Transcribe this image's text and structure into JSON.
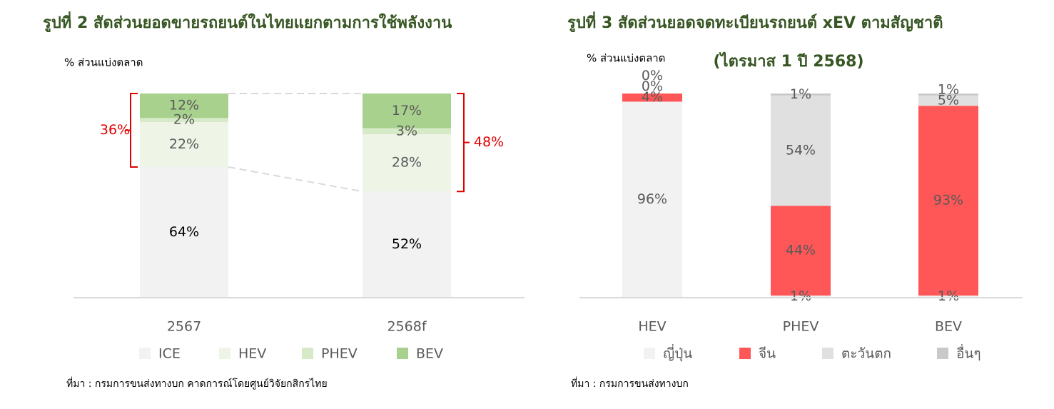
{
  "chart_data": [
    {
      "type": "stacked_bar",
      "title": "รูปที่ 2 สัดส่วนยอดขายรถยนต์ในไทยแยกตามการใช้พลังงาน",
      "y_label": "% ส่วนแบ่งตลาด",
      "categories": [
        "2567",
        "2568f"
      ],
      "ylim": [
        0,
        100
      ],
      "series": [
        {
          "name": "ICE",
          "color": "#f2f2f2",
          "values": [
            64,
            52
          ],
          "value_labels": [
            "64%",
            "52%"
          ]
        },
        {
          "name": "HEV",
          "color": "#eef5e7",
          "values": [
            22,
            28
          ],
          "value_labels": [
            "22%",
            "28%"
          ]
        },
        {
          "name": "PHEV",
          "color": "#d6eac8",
          "values": [
            2,
            3
          ],
          "value_labels": [
            "2%",
            "3%"
          ]
        },
        {
          "name": "BEV",
          "color": "#a9d18e",
          "values": [
            12,
            17
          ],
          "value_labels": [
            "12%",
            "17%"
          ]
        }
      ],
      "annotations": [
        "36%",
        "48%"
      ],
      "source": "ที่มา : กรมการขนส่งทางบก คาดการณ์โดยศูนย์วิจัยกสิกรไทย"
    },
    {
      "type": "stacked_bar",
      "title": "รูปที่ 3 สัดส่วนยอดจดทะเบียนรถยนต์ xEV ตามสัญชาติ",
      "subtitle": "(ไตรมาส 1 ปี 2568)",
      "y_label": "% ส่วนแบ่งตลาด",
      "categories": [
        "HEV",
        "PHEV",
        "BEV"
      ],
      "ylim": [
        0,
        100
      ],
      "series": [
        {
          "name": "ญี่ปุ่น",
          "color": "#f2f2f2",
          "values": [
            96,
            1,
            1
          ],
          "value_labels": [
            "96%",
            "1%",
            "1%"
          ]
        },
        {
          "name": "จีน",
          "color": "#ff5757",
          "values": [
            4,
            44,
            93
          ],
          "value_labels": [
            "4%",
            "44%",
            "93%"
          ]
        },
        {
          "name": "ตะวันตก",
          "color": "#e0e0e0",
          "values": [
            0,
            54,
            5
          ],
          "value_labels": [
            "0%",
            "54%",
            "5%"
          ]
        },
        {
          "name": "อื่นๆ",
          "color": "#c9c9c9",
          "values": [
            0,
            1,
            1
          ],
          "value_labels": [
            "0%",
            "1%",
            "1%"
          ]
        }
      ],
      "source": "ที่มา : กรมการขนส่งทางบก"
    }
  ]
}
